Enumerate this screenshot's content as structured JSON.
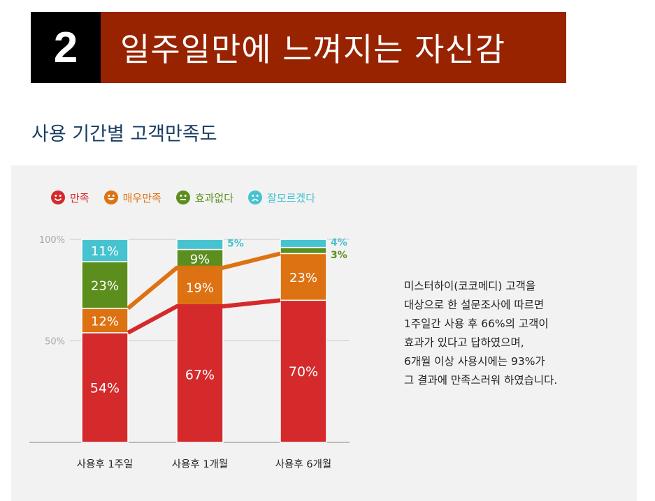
{
  "banner": {
    "number": "2",
    "title": "일주일만에 느껴지는 자신감"
  },
  "section_title": "사용 기간별 고객만족도",
  "description": [
    "미스터하이(코코메디) 고객을",
    "대상으로 한 설문조사에 따르면",
    "1주일간 사용 후 66%의 고객이",
    "효과가 있다고 답하였으며,",
    "6개월 이상 사용시에는 93%가",
    "그 결과에 만족스러워 하였습니다."
  ],
  "colors": {
    "만족": "#d42a2c",
    "매우만족": "#dd7212",
    "효과없다": "#5c8e1e",
    "잘모르겠다": "#46c3cf"
  },
  "chart_data": {
    "type": "bar",
    "stacked": true,
    "categories": [
      "사용후 1주일",
      "사용후 1개월",
      "사용후 6개월"
    ],
    "series": [
      {
        "name": "만족",
        "values": [
          54,
          67,
          70
        ],
        "color": "#d42a2c",
        "icon": "smile-face-icon"
      },
      {
        "name": "매우만족",
        "values": [
          12,
          19,
          23
        ],
        "color": "#dd7212",
        "icon": "happy-face-icon"
      },
      {
        "name": "효과없다",
        "values": [
          23,
          9,
          3
        ],
        "color": "#5c8e1e",
        "icon": "neutral-face-icon"
      },
      {
        "name": "잘모르겠다",
        "values": [
          11,
          5,
          4
        ],
        "color": "#46c3cf",
        "icon": "sad-face-icon"
      }
    ],
    "y_ticks": [
      50,
      100
    ],
    "y_tick_labels": [
      "50%",
      "100%"
    ],
    "ylim": [
      0,
      100
    ],
    "trend_lines": [
      "만족",
      "매우만족"
    ],
    "legend_position": "top-left"
  }
}
